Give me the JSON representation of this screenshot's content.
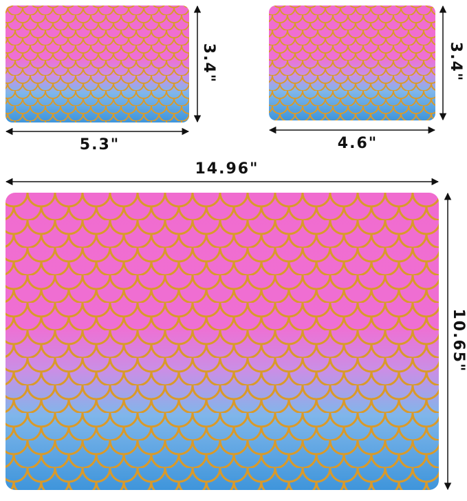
{
  "items": [
    {
      "width": "5.3\"",
      "height": "3.4\""
    },
    {
      "width": "4.6\"",
      "height": "3.4\""
    },
    {
      "width": "14.96\"",
      "height": "10.65\""
    }
  ]
}
